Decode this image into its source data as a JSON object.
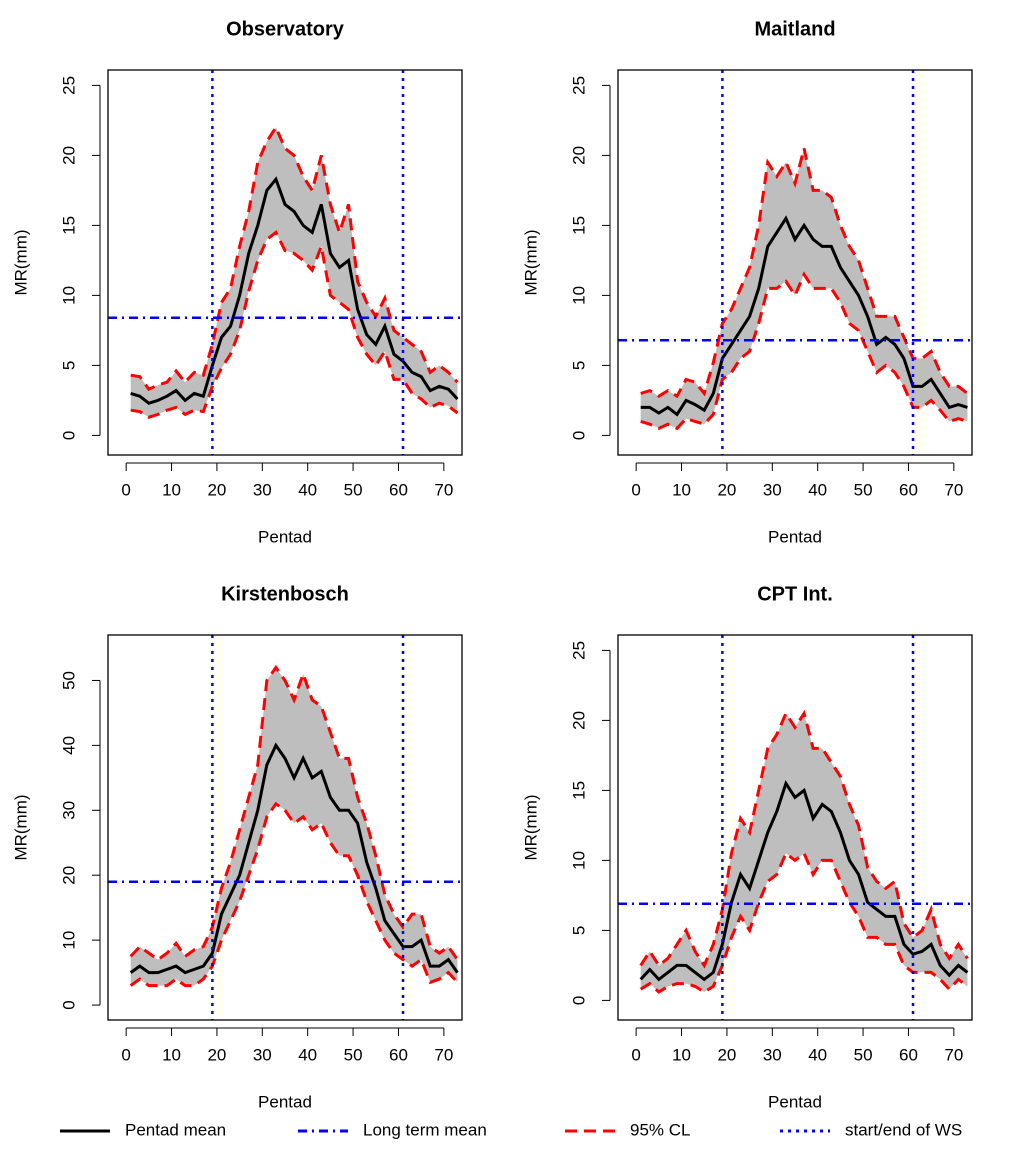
{
  "legend": [
    {
      "label": "Pentad mean",
      "color": "#000000",
      "dash": "solid"
    },
    {
      "label": "Long term mean",
      "color": "#0000ff",
      "dash": "dashdot"
    },
    {
      "label": "95% CL",
      "color": "#ff0000",
      "dash": "dashed"
    },
    {
      "label": "start/end of WS",
      "color": "#0000ff",
      "dash": "dotted"
    }
  ],
  "chart_data": [
    {
      "type": "line",
      "title": "Observatory",
      "x_label": "Pentad",
      "y_label": "MR(mm)",
      "x": [
        1,
        3,
        5,
        7,
        9,
        11,
        13,
        15,
        17,
        19,
        21,
        23,
        25,
        27,
        29,
        31,
        33,
        35,
        37,
        39,
        41,
        43,
        45,
        47,
        49,
        51,
        53,
        55,
        57,
        59,
        61,
        63,
        65,
        67,
        69,
        71,
        73
      ],
      "xlim": [
        -4,
        74
      ],
      "xticks": [
        0,
        10,
        20,
        30,
        40,
        50,
        60,
        70
      ],
      "ylim": [
        -1.4,
        26.1
      ],
      "yticks": [
        0,
        5,
        10,
        15,
        20,
        25
      ],
      "long_term_mean": 8.4,
      "ws_bounds": [
        19,
        61
      ],
      "band_color": "#bebebe",
      "series": [
        {
          "role": "mean",
          "color": "#000000",
          "values": [
            3,
            2.8,
            2.3,
            2.5,
            2.8,
            3.2,
            2.5,
            3.0,
            2.8,
            5.0,
            7.0,
            7.8,
            10,
            13,
            15,
            17.5,
            18.3,
            16.5,
            16,
            15,
            14.5,
            16.5,
            13,
            12,
            12.5,
            9,
            7.2,
            6.5,
            7.8,
            5.8,
            5.3,
            4.5,
            4.2,
            3.2,
            3.5,
            3.3,
            2.6
          ]
        },
        {
          "role": "upper",
          "color": "#ff0000",
          "values": [
            4.3,
            4.2,
            3.3,
            3.6,
            3.8,
            4.6,
            3.8,
            4.5,
            4.3,
            6.5,
            9.5,
            10.5,
            13.5,
            16,
            19.5,
            21,
            22,
            20.5,
            20,
            18.5,
            17.5,
            20,
            16.5,
            14.5,
            16.5,
            11,
            9.5,
            8.5,
            9.8,
            7.5,
            7,
            6.5,
            6,
            4.5,
            5,
            4.5,
            3.8
          ]
        },
        {
          "role": "lower",
          "color": "#ff0000",
          "values": [
            1.8,
            1.7,
            1.3,
            1.5,
            1.8,
            2.0,
            1.5,
            1.8,
            1.7,
            3.5,
            4.8,
            5.8,
            7.5,
            10.3,
            12.5,
            14,
            14.5,
            13.2,
            13,
            12.5,
            11.8,
            13.5,
            10,
            9.5,
            9,
            7,
            5.8,
            5,
            6,
            4,
            4,
            3,
            2.6,
            2,
            2.3,
            2.1,
            1.6
          ]
        }
      ]
    },
    {
      "type": "line",
      "title": "Maitland",
      "x_label": "Pentad",
      "y_label": "MR(mm)",
      "x": [
        1,
        3,
        5,
        7,
        9,
        11,
        13,
        15,
        17,
        19,
        21,
        23,
        25,
        27,
        29,
        31,
        33,
        35,
        37,
        39,
        41,
        43,
        45,
        47,
        49,
        51,
        53,
        55,
        57,
        59,
        61,
        63,
        65,
        67,
        69,
        71,
        73
      ],
      "xlim": [
        -4,
        74
      ],
      "xticks": [
        0,
        10,
        20,
        30,
        40,
        50,
        60,
        70
      ],
      "ylim": [
        -1.4,
        26.1
      ],
      "yticks": [
        0,
        5,
        10,
        15,
        20,
        25
      ],
      "long_term_mean": 6.8,
      "ws_bounds": [
        19,
        61
      ],
      "band_color": "#bebebe",
      "series": [
        {
          "role": "mean",
          "color": "#000000",
          "values": [
            2.0,
            2.0,
            1.6,
            2.0,
            1.5,
            2.5,
            2.2,
            1.8,
            3.0,
            5.5,
            6.5,
            7.5,
            8.5,
            10.5,
            13.5,
            14.5,
            15.5,
            14,
            15,
            14,
            13.5,
            13.5,
            12,
            11,
            10,
            8.5,
            6.5,
            7,
            6.5,
            5.5,
            3.5,
            3.5,
            4.0,
            3.0,
            2.0,
            2.2,
            2.0
          ]
        },
        {
          "role": "upper",
          "color": "#ff0000",
          "values": [
            3.0,
            3.2,
            2.8,
            3.2,
            2.8,
            4.0,
            3.8,
            3.0,
            5.2,
            8.0,
            9.0,
            10.5,
            12.0,
            15.0,
            19.5,
            18.5,
            19.5,
            18.0,
            20.5,
            17.5,
            17.5,
            17.0,
            15.0,
            13.5,
            12.5,
            10.5,
            8.5,
            8.5,
            8.5,
            7.0,
            5.5,
            5.5,
            6.0,
            4.5,
            3.5,
            3.5,
            3.0
          ]
        },
        {
          "role": "lower",
          "color": "#ff0000",
          "values": [
            1.0,
            0.8,
            0.5,
            0.8,
            0.5,
            1.2,
            1.0,
            0.8,
            1.5,
            4.0,
            4.5,
            5.5,
            6.0,
            8.0,
            10.5,
            10.5,
            11.0,
            10.0,
            11.5,
            10.5,
            10.5,
            10.5,
            9.5,
            8.0,
            7.5,
            6.0,
            4.5,
            5.0,
            4.5,
            3.5,
            2.0,
            2.0,
            2.5,
            1.8,
            1.0,
            1.2,
            1.0
          ]
        }
      ]
    },
    {
      "type": "line",
      "title": "Kirstenbosch",
      "x_label": "Pentad",
      "y_label": "MR(mm)",
      "x": [
        1,
        3,
        5,
        7,
        9,
        11,
        13,
        15,
        17,
        19,
        21,
        23,
        25,
        27,
        29,
        31,
        33,
        35,
        37,
        39,
        41,
        43,
        45,
        47,
        49,
        51,
        53,
        55,
        57,
        59,
        61,
        63,
        65,
        67,
        69,
        71,
        73
      ],
      "xlim": [
        -4,
        74
      ],
      "xticks": [
        0,
        10,
        20,
        30,
        40,
        50,
        60,
        70
      ],
      "ylim": [
        -2.3,
        57
      ],
      "yticks": [
        0,
        10,
        20,
        30,
        40,
        50
      ],
      "long_term_mean": 19,
      "ws_bounds": [
        19,
        61
      ],
      "band_color": "#bebebe",
      "series": [
        {
          "role": "mean",
          "color": "#000000",
          "values": [
            5,
            6,
            5,
            5,
            5.5,
            6,
            5,
            5.5,
            6,
            8,
            14,
            17,
            20,
            25,
            30,
            37,
            40,
            38,
            35,
            38,
            35,
            36,
            32,
            30,
            30,
            28,
            22,
            18,
            13,
            11,
            9,
            9,
            10,
            6,
            6,
            7,
            5
          ]
        },
        {
          "role": "upper",
          "color": "#ff0000",
          "values": [
            7.5,
            9,
            8,
            7,
            8,
            9.5,
            7.5,
            8.5,
            9,
            12,
            18,
            22,
            27,
            32,
            37,
            50,
            52,
            50,
            47,
            51,
            47,
            46,
            42,
            38,
            38,
            32,
            28,
            23,
            17,
            14,
            12,
            14,
            14,
            9,
            8,
            9,
            7
          ]
        },
        {
          "role": "lower",
          "color": "#ff0000",
          "values": [
            3,
            4,
            3,
            3,
            3,
            4,
            3,
            3,
            4,
            6,
            10,
            13,
            16,
            20,
            24,
            29,
            31,
            30,
            28,
            29,
            27,
            28,
            25,
            23,
            23,
            20,
            16,
            13,
            10,
            8,
            7,
            6,
            7,
            3.5,
            4,
            5,
            3.5
          ]
        }
      ]
    },
    {
      "type": "line",
      "title": "CPT Int.",
      "x_label": "Pentad",
      "y_label": "MR(mm)",
      "x": [
        1,
        3,
        5,
        7,
        9,
        11,
        13,
        15,
        17,
        19,
        21,
        23,
        25,
        27,
        29,
        31,
        33,
        35,
        37,
        39,
        41,
        43,
        45,
        47,
        49,
        51,
        53,
        55,
        57,
        59,
        61,
        63,
        65,
        67,
        69,
        71,
        73
      ],
      "xlim": [
        -4,
        74
      ],
      "xticks": [
        0,
        10,
        20,
        30,
        40,
        50,
        60,
        70
      ],
      "ylim": [
        -1.4,
        26.1
      ],
      "yticks": [
        0,
        5,
        10,
        15,
        20,
        25
      ],
      "long_term_mean": 6.9,
      "ws_bounds": [
        19,
        61
      ],
      "band_color": "#bebebe",
      "series": [
        {
          "role": "mean",
          "color": "#000000",
          "values": [
            1.5,
            2.2,
            1.5,
            2,
            2.5,
            2.5,
            2,
            1.5,
            2,
            4,
            7,
            9,
            8,
            10,
            12,
            13.5,
            15.5,
            14.5,
            15,
            13,
            14,
            13.5,
            12,
            10,
            9,
            7,
            6.5,
            6,
            6,
            4,
            3.3,
            3.5,
            4,
            2.5,
            1.8,
            2.5,
            2
          ]
        },
        {
          "role": "upper",
          "color": "#ff0000",
          "values": [
            2.5,
            3.5,
            2.5,
            3,
            4,
            5,
            3.5,
            2.5,
            4,
            6.5,
            10.5,
            13,
            12,
            15,
            18,
            19,
            20.5,
            19.5,
            20.5,
            18,
            18,
            17,
            16,
            14,
            12.5,
            9.5,
            8.5,
            8,
            8.5,
            5.5,
            4.5,
            5,
            6.5,
            4,
            3,
            4,
            3
          ]
        },
        {
          "role": "lower",
          "color": "#ff0000",
          "values": [
            0.8,
            1.2,
            0.6,
            1,
            1.2,
            1.2,
            1,
            0.6,
            1,
            2.5,
            4.5,
            6,
            5,
            7,
            8.5,
            9,
            10.5,
            10,
            10.5,
            9,
            10,
            10,
            8.5,
            7,
            6,
            4.5,
            4.5,
            4,
            4,
            2.5,
            2,
            2,
            2,
            1.5,
            0.8,
            1.5,
            1
          ]
        }
      ]
    }
  ]
}
